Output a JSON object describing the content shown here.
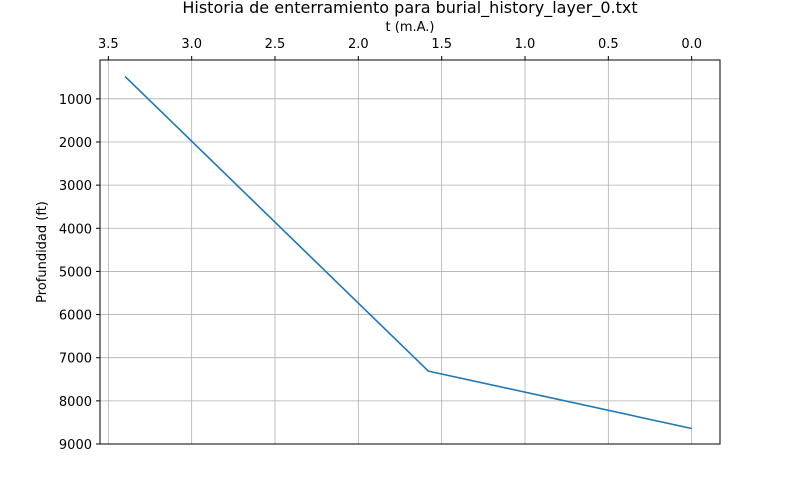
{
  "chart_data": {
    "type": "line",
    "title": "Historia de enterramiento para burial_history_layer_0.txt",
    "xlabel": "t (m.A.)",
    "ylabel": "Profundidad (ft)",
    "x_axis_position": "top",
    "x_inverted": true,
    "y_inverted": true,
    "xlim": [
      3.55,
      -0.17
    ],
    "ylim": [
      9000,
      100
    ],
    "xticks": [
      3.5,
      3.0,
      2.5,
      2.0,
      1.5,
      1.0,
      0.5,
      0.0
    ],
    "xtick_labels": [
      "3.5",
      "3.0",
      "2.5",
      "2.0",
      "1.5",
      "1.0",
      "0.5",
      "0.0"
    ],
    "yticks": [
      1000,
      2000,
      3000,
      4000,
      5000,
      6000,
      7000,
      8000,
      9000
    ],
    "ytick_labels": [
      "1000",
      "2000",
      "3000",
      "4000",
      "5000",
      "6000",
      "7000",
      "8000",
      "9000"
    ],
    "grid": true,
    "series": [
      {
        "color": "#1f77b4",
        "x": [
          3.4,
          1.58,
          0.0
        ],
        "y": [
          480,
          7310,
          8640
        ]
      }
    ]
  }
}
